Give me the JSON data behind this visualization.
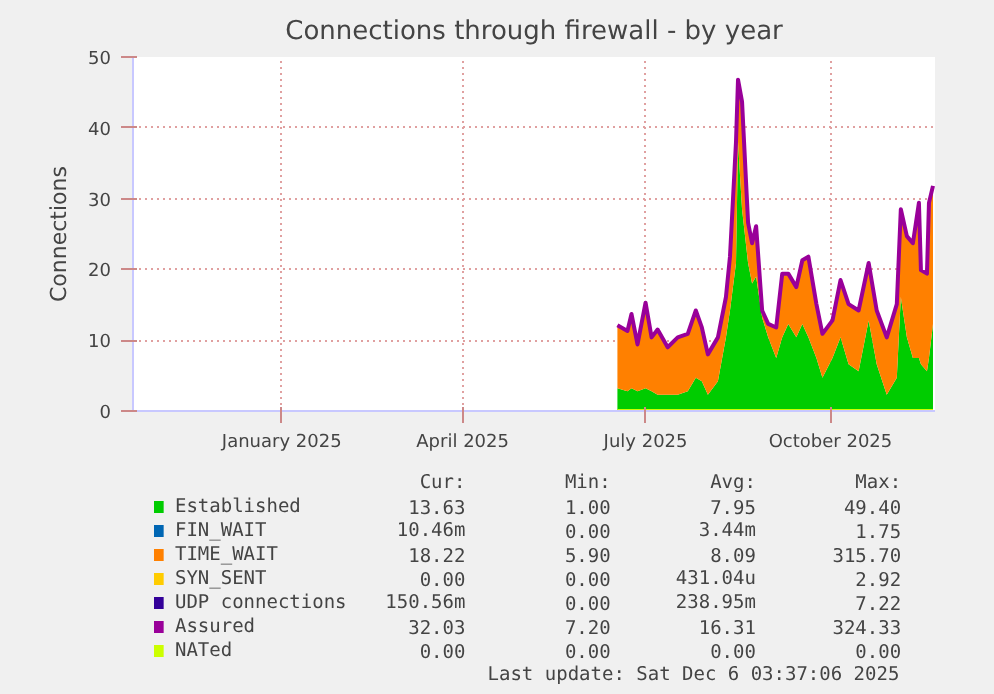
{
  "chart_data": {
    "type": "area",
    "title": "Connections through firewall - by year",
    "ylabel": "Connections",
    "stacked": true,
    "legend": "bottom",
    "grid": true,
    "xlim": [
      "2024-11-02",
      "2025-12-06"
    ],
    "xticks": [
      {
        "value": "2025-01-15",
        "label": "January 2025"
      },
      {
        "value": "2025-04-15",
        "label": "April 2025"
      },
      {
        "value": "2025-07-15",
        "label": "July 2025"
      },
      {
        "value": "2025-10-15",
        "label": "October 2025"
      }
    ],
    "ylim": [
      0,
      50
    ],
    "yticks": [
      0,
      10,
      20,
      30,
      40,
      50
    ],
    "x": [
      "2025-07-01",
      "2025-07-06",
      "2025-07-08",
      "2025-07-11",
      "2025-07-15",
      "2025-07-18",
      "2025-07-21",
      "2025-07-26",
      "2025-07-31",
      "2025-08-05",
      "2025-08-09",
      "2025-08-12",
      "2025-08-15",
      "2025-08-20",
      "2025-08-24",
      "2025-08-26",
      "2025-08-29",
      "2025-08-30",
      "2025-09-01",
      "2025-09-04",
      "2025-09-06",
      "2025-09-08",
      "2025-09-11",
      "2025-09-14",
      "2025-09-18",
      "2025-09-21",
      "2025-09-24",
      "2025-09-28",
      "2025-10-01",
      "2025-10-04",
      "2025-10-08",
      "2025-10-11",
      "2025-10-16",
      "2025-10-20",
      "2025-10-24",
      "2025-10-29",
      "2025-11-03",
      "2025-11-07",
      "2025-11-12",
      "2025-11-17",
      "2025-11-19",
      "2025-11-22",
      "2025-11-25",
      "2025-11-28",
      "2025-11-29",
      "2025-12-02",
      "2025-12-03",
      "2025-12-05"
    ],
    "series": [
      {
        "name": "Established",
        "color": "#00cc00",
        "values": [
          3.2,
          2.8,
          3.2,
          2.8,
          3.2,
          2.8,
          2.3,
          2.3,
          2.3,
          2.8,
          4.7,
          4.2,
          2.3,
          4.2,
          10.4,
          14.2,
          20.9,
          38.0,
          28.5,
          20.9,
          18.0,
          19.0,
          13.2,
          10.4,
          7.5,
          10.4,
          12.3,
          10.4,
          12.3,
          10.4,
          7.5,
          4.7,
          7.5,
          10.4,
          6.6,
          5.6,
          12.8,
          6.6,
          2.3,
          4.7,
          16.1,
          10.4,
          7.5,
          7.5,
          6.6,
          5.6,
          7.5,
          12.3
        ]
      },
      {
        "name": "FIN_WAIT",
        "color": "#0066b3",
        "values": [
          null,
          null,
          null,
          null,
          null,
          null,
          null,
          null,
          null,
          null,
          null,
          null,
          null,
          null,
          null,
          null,
          null,
          null,
          null,
          null,
          null,
          null,
          null,
          null,
          null,
          null,
          null,
          null,
          null,
          null,
          null,
          null,
          null,
          null,
          null,
          null,
          null,
          null,
          null,
          null,
          null,
          null,
          null,
          null,
          null,
          null,
          null,
          null
        ]
      },
      {
        "name": "TIME_WAIT",
        "color": "#ff8000",
        "values": [
          8.9,
          8.5,
          10.5,
          6.6,
          12.1,
          7.6,
          9.2,
          6.7,
          8.1,
          8.1,
          9.5,
          7.6,
          5.7,
          6.2,
          5.7,
          7.6,
          17.1,
          8.8,
          15.2,
          5.7,
          5.7,
          7.1,
          1.0,
          1.9,
          4.3,
          9.0,
          7.1,
          7.1,
          9.0,
          11.4,
          7.6,
          6.2,
          5.3,
          8.1,
          8.5,
          8.6,
          8.1,
          7.6,
          8.1,
          10.4,
          12.4,
          14.3,
          16.2,
          21.9,
          13.3,
          13.8,
          21.9,
          19.5
        ]
      },
      {
        "name": "SYN_SENT",
        "color": "#ffcc00",
        "values": [
          null,
          null,
          null,
          null,
          null,
          null,
          null,
          null,
          null,
          null,
          null,
          null,
          null,
          null,
          null,
          null,
          null,
          null,
          null,
          null,
          null,
          null,
          null,
          null,
          null,
          null,
          null,
          null,
          null,
          null,
          null,
          null,
          null,
          null,
          null,
          null,
          null,
          null,
          null,
          null,
          null,
          null,
          null,
          null,
          null,
          null,
          null,
          null
        ]
      },
      {
        "name": "UDP connections",
        "color": "#330099",
        "values": [
          null,
          null,
          null,
          null,
          null,
          null,
          null,
          null,
          null,
          null,
          null,
          null,
          null,
          null,
          null,
          null,
          null,
          null,
          null,
          null,
          null,
          null,
          null,
          null,
          null,
          null,
          null,
          null,
          null,
          null,
          null,
          null,
          null,
          null,
          null,
          null,
          null,
          null,
          null,
          null,
          null,
          null,
          null,
          null,
          null,
          null,
          null,
          null
        ]
      },
      {
        "name": "Assured",
        "type": "line",
        "color": "#990099",
        "values": [
          12.1,
          11.3,
          13.7,
          9.4,
          15.3,
          10.4,
          11.5,
          9.0,
          10.4,
          10.9,
          14.2,
          11.8,
          8.0,
          10.4,
          16.1,
          21.8,
          38.0,
          46.8,
          43.7,
          26.6,
          23.7,
          26.1,
          14.2,
          12.3,
          11.8,
          19.4,
          19.4,
          17.5,
          21.3,
          21.8,
          15.1,
          10.9,
          12.8,
          18.5,
          15.1,
          14.2,
          20.9,
          14.2,
          10.4,
          15.1,
          28.5,
          24.7,
          23.7,
          29.4,
          19.9,
          19.4,
          29.4,
          31.8
        ]
      },
      {
        "name": "NATed",
        "type": "line",
        "color": "#ccff00",
        "values": [
          0,
          0,
          0,
          0,
          0,
          0,
          0,
          0,
          0,
          0,
          0,
          0,
          0,
          0,
          0,
          0,
          0,
          0,
          0,
          0,
          0,
          0,
          0,
          0,
          0,
          0,
          0,
          0,
          0,
          0,
          0,
          0,
          0,
          0,
          0,
          0,
          0,
          0,
          0,
          0,
          0,
          0,
          0,
          0,
          0,
          0,
          0,
          0
        ]
      }
    ],
    "annotations": [
      "Cur:",
      "Min:",
      "Avg:",
      "Max:",
      "13.63",
      "1.00",
      "7.95",
      "49.40",
      "10.46m",
      "0.00",
      "3.44m",
      "1.75",
      "18.22",
      "5.90",
      "8.09",
      "315.70",
      "0.00",
      "0.00",
      "431.04u",
      "2.92",
      "150.56m",
      "0.00",
      "238.95m",
      "7.22",
      "32.03",
      "7.20",
      "16.31",
      "324.33",
      "0.00",
      "0.00",
      "0.00",
      "0.00",
      "Last update: Sat Dec  6 03:37:06 2025"
    ]
  }
}
